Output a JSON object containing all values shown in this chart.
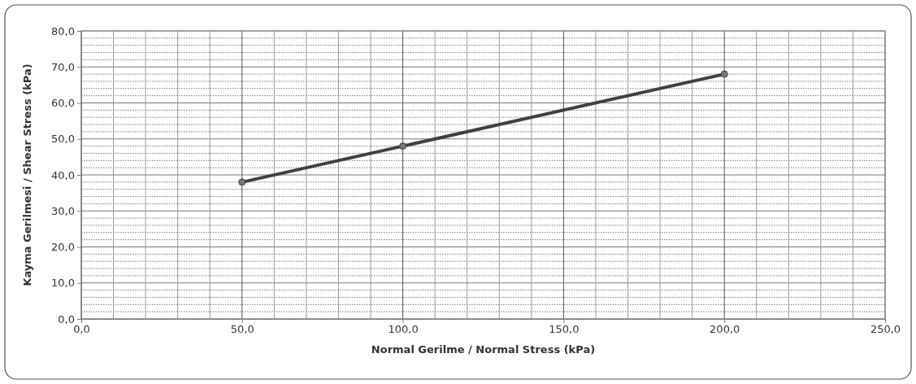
{
  "chart_data": {
    "type": "line",
    "xlabel": "Normal Gerilme / Normal Stress (kPa)",
    "ylabel": "Kayma Gerilmesi / Shear Stress (kPa)",
    "x": [
      50,
      100,
      200
    ],
    "series": [
      {
        "color": "#404040",
        "values": [
          38,
          48,
          68
        ]
      }
    ],
    "xlim": [
      0,
      250
    ],
    "ylim": [
      0,
      80
    ],
    "xticks": [
      {
        "value": 0,
        "label": "0,0"
      },
      {
        "value": 50,
        "label": "50,0"
      },
      {
        "value": 100,
        "label": "100,0"
      },
      {
        "value": 150,
        "label": "150,0"
      },
      {
        "value": 200,
        "label": "200,0"
      },
      {
        "value": 250,
        "label": "250,0"
      }
    ],
    "yticks": [
      {
        "value": 0,
        "label": "0,0"
      },
      {
        "value": 10,
        "label": "10,0"
      },
      {
        "value": 20,
        "label": "20,0"
      },
      {
        "value": 30,
        "label": "30,0"
      },
      {
        "value": 40,
        "label": "40,0"
      },
      {
        "value": 50,
        "label": "50,0"
      },
      {
        "value": 60,
        "label": "60,0"
      },
      {
        "value": 70,
        "label": "70,0"
      },
      {
        "value": 80,
        "label": "80,0"
      }
    ],
    "grid": true,
    "marker": "circle",
    "line_style": "solid"
  }
}
